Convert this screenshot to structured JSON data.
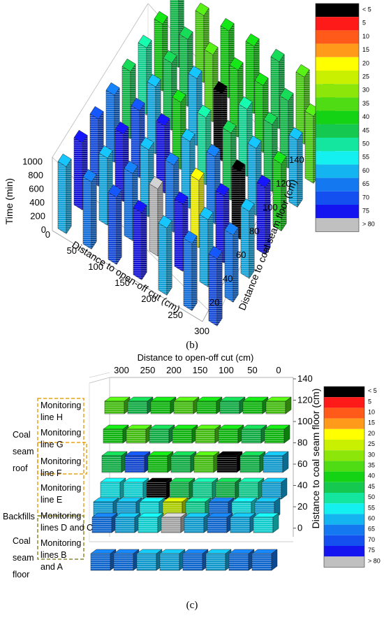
{
  "captions": {
    "b": "(b)",
    "c": "(c)"
  },
  "legend": {
    "labels": [
      "< 5",
      "5",
      "10",
      "15",
      "20",
      "25",
      "30",
      "35",
      "40",
      "45",
      "50",
      "55",
      "60",
      "65",
      "70",
      "75",
      "> 80"
    ],
    "colors": [
      "#000000",
      "#ff1a1a",
      "#ff5a1a",
      "#ff9a1a",
      "#ffff00",
      "#c8f000",
      "#8ce60a",
      "#50dc14",
      "#14d214",
      "#14c850",
      "#14e6a0",
      "#14f0f0",
      "#14b4f0",
      "#1478f0",
      "#1450f0",
      "#1414f0",
      "#c0c0c0"
    ]
  },
  "chart_data": [
    {
      "type": "3d-bar",
      "panel": "b",
      "xlabel": "Distance to open-off cut (cm)",
      "ylabel": "Distance to coal seam floor (cm)",
      "zlabel": "Time (min)",
      "x_ticks": [
        "0",
        "50",
        "100",
        "150",
        "200",
        "250",
        "300"
      ],
      "y_ticks": [
        "20",
        "40",
        "60",
        "80",
        "100",
        "120",
        "140"
      ],
      "z_ticks": [
        "0",
        "200",
        "400",
        "600",
        "800",
        "1000"
      ],
      "xlim": [
        0,
        300
      ],
      "ylim": [
        0,
        140
      ],
      "zlim": [
        0,
        1000
      ]
    },
    {
      "type": "3d-bar",
      "panel": "c",
      "xlabel": "Distance to open-off cut (cm)",
      "ylabel": "Distance to coal seam floor (cm)",
      "x_ticks": [
        "300",
        "250",
        "200",
        "150",
        "100",
        "50",
        "0"
      ],
      "y_ticks": [
        "140",
        "120",
        "100",
        "80",
        "60",
        "40",
        "20",
        "0"
      ],
      "xlim": [
        300,
        0
      ],
      "ylim": [
        0,
        140
      ],
      "regions": [
        {
          "name": "Coal seam roof",
          "lines": [
            "Monitoring line H",
            "Monitoring line G",
            "Monitoring line F",
            "Monitoring line E"
          ]
        },
        {
          "name": "Backfills",
          "lines": [
            "Monitoring lines D and C"
          ]
        },
        {
          "name": "Coal seam floor",
          "lines": [
            "Monitoring lines B and A"
          ]
        }
      ]
    }
  ],
  "labels_c": {
    "coal_seam_roof": [
      "Coal",
      "seam",
      "roof"
    ],
    "backfills": "Backfills",
    "coal_seam_floor": [
      "Coal",
      "seam",
      "floor"
    ],
    "mon_h": [
      "Monitoring",
      "line H"
    ],
    "mon_g": [
      "Monitoring",
      "line G"
    ],
    "mon_f": [
      "Monitoring",
      "line F"
    ],
    "mon_e": [
      "Monitoring",
      "line E"
    ],
    "mon_dc": [
      "Monitoring",
      "lines D and C"
    ],
    "mon_ba": [
      "Monitoring",
      "lines B",
      "and A"
    ]
  }
}
